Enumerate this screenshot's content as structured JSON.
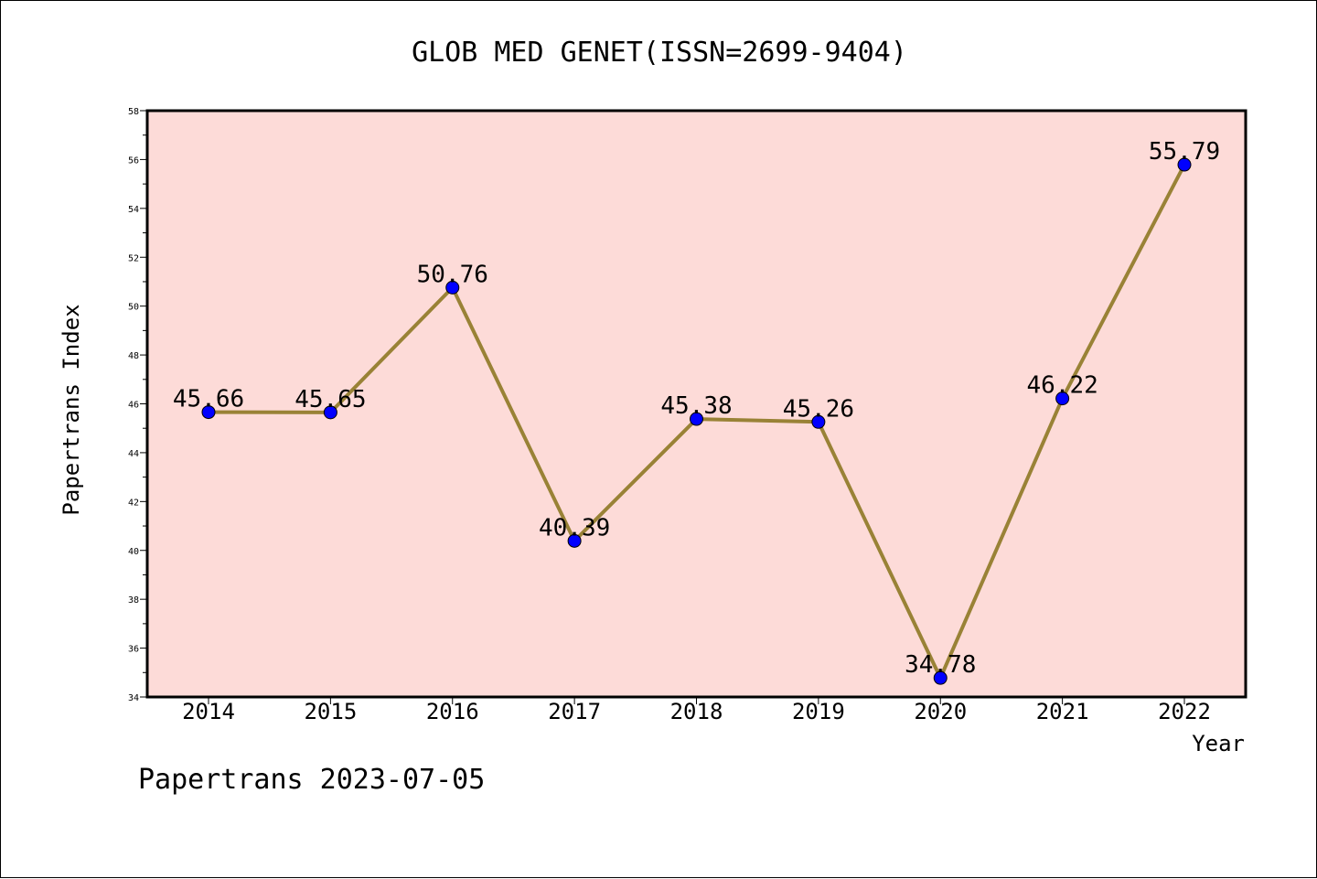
{
  "chart_data": {
    "type": "line",
    "title": "GLOB MED GENET(ISSN=2699-9404)",
    "xlabel": "Year",
    "ylabel": "Papertrans Index",
    "categories": [
      "2014",
      "2015",
      "2016",
      "2017",
      "2018",
      "2019",
      "2020",
      "2021",
      "2022"
    ],
    "series": [
      {
        "values": [
          45.66,
          45.65,
          50.76,
          40.39,
          45.38,
          45.26,
          34.78,
          46.22,
          55.79
        ]
      }
    ],
    "data_labels": [
      "45.66",
      "45.65",
      "50.76",
      "40.39",
      "45.38",
      "45.26",
      "34.78",
      "46.22",
      "55.79"
    ],
    "ylim": [
      34,
      58
    ],
    "yticks": [
      "34",
      "36",
      "38",
      "40",
      "42",
      "44",
      "46",
      "48",
      "50",
      "52",
      "54",
      "56",
      "58"
    ],
    "grid": false,
    "legend": "none",
    "colors": {
      "plot_background": "#fddbd8",
      "line": "#998236",
      "marker": "#0000ff"
    }
  },
  "footer": "Papertrans 2023-07-05"
}
